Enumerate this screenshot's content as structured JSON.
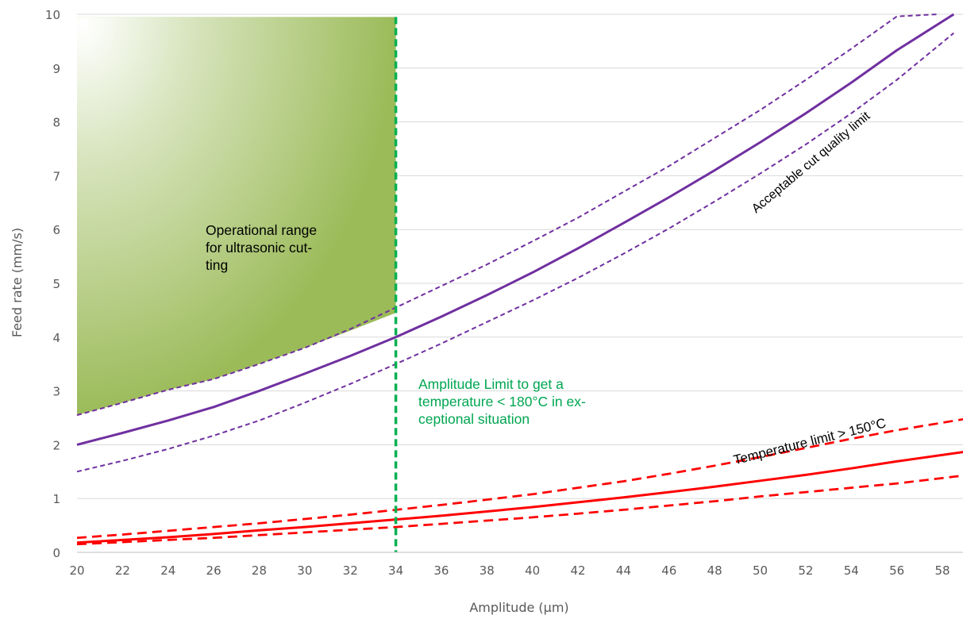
{
  "chart_data": {
    "type": "line",
    "title": "",
    "xlabel": "Amplitude (µm)",
    "ylabel": "Feed rate (mm/s)",
    "xlim": [
      20,
      59
    ],
    "ylim": [
      0,
      10
    ],
    "x_ticks": [
      20,
      22,
      24,
      26,
      28,
      30,
      32,
      34,
      36,
      38,
      40,
      42,
      44,
      46,
      48,
      50,
      52,
      54,
      56,
      58
    ],
    "y_ticks": [
      0,
      1,
      2,
      3,
      4,
      5,
      6,
      7,
      8,
      9,
      10
    ],
    "grid": {
      "horizontal": true,
      "vertical": false
    },
    "series": [
      {
        "name": "Acceptable cut quality limit",
        "style": "solid",
        "color": "#7030a0",
        "x": [
          20,
          22,
          24,
          26,
          28,
          30,
          32,
          34,
          36,
          38,
          40,
          42,
          44,
          46,
          48,
          50,
          52,
          54,
          56,
          58.5
        ],
        "y": [
          2.0,
          2.22,
          2.45,
          2.7,
          3.0,
          3.32,
          3.65,
          4.0,
          4.38,
          4.78,
          5.2,
          5.65,
          6.12,
          6.6,
          7.1,
          7.62,
          8.16,
          8.73,
          9.33,
          10.0
        ]
      },
      {
        "style": "dashed",
        "color": "#7030a0",
        "x": [
          20,
          22,
          24,
          26,
          28,
          30,
          32,
          34,
          36,
          38,
          40,
          42,
          44,
          46,
          48,
          50,
          52,
          54,
          56,
          57.8
        ],
        "y": [
          2.55,
          2.78,
          3.02,
          3.22,
          3.5,
          3.8,
          4.15,
          4.55,
          4.95,
          5.35,
          5.78,
          6.22,
          6.7,
          7.18,
          7.7,
          8.22,
          8.78,
          9.36,
          9.96,
          10.0
        ]
      },
      {
        "style": "dashed",
        "color": "#7030a0",
        "x": [
          20,
          22,
          24,
          26,
          28,
          30,
          32,
          34,
          36,
          38,
          40,
          42,
          44,
          46,
          48,
          50,
          52,
          54,
          56,
          58.5
        ],
        "y": [
          1.5,
          1.7,
          1.92,
          2.17,
          2.45,
          2.78,
          3.13,
          3.5,
          3.88,
          4.28,
          4.68,
          5.1,
          5.55,
          6.02,
          6.52,
          7.04,
          7.58,
          8.16,
          8.78,
          9.65
        ]
      },
      {
        "name": "Temperature limit > 150°C",
        "style": "solid",
        "color": "#ff0000",
        "x": [
          20,
          22,
          24,
          26,
          28,
          30,
          32,
          34,
          36,
          38,
          40,
          42,
          44,
          46,
          48,
          50,
          52,
          54,
          56,
          59
        ],
        "y": [
          0.18,
          0.23,
          0.28,
          0.34,
          0.41,
          0.47,
          0.54,
          0.61,
          0.68,
          0.76,
          0.84,
          0.93,
          1.02,
          1.12,
          1.22,
          1.33,
          1.44,
          1.56,
          1.69,
          1.87
        ]
      },
      {
        "style": "dashed",
        "color": "#ff0000",
        "x": [
          20,
          22,
          24,
          26,
          28,
          30,
          32,
          34,
          36,
          38,
          40,
          42,
          44,
          46,
          48,
          50,
          52,
          54,
          56,
          59
        ],
        "y": [
          0.27,
          0.33,
          0.4,
          0.47,
          0.54,
          0.62,
          0.7,
          0.79,
          0.88,
          0.98,
          1.08,
          1.2,
          1.32,
          1.46,
          1.61,
          1.77,
          1.94,
          2.11,
          2.27,
          2.48
        ]
      },
      {
        "style": "dashed",
        "color": "#ff0000",
        "x": [
          20,
          22,
          24,
          26,
          28,
          30,
          32,
          34,
          36,
          38,
          40,
          42,
          44,
          46,
          48,
          50,
          52,
          54,
          56,
          59
        ],
        "y": [
          0.15,
          0.19,
          0.23,
          0.27,
          0.32,
          0.37,
          0.42,
          0.47,
          0.53,
          0.59,
          0.65,
          0.72,
          0.79,
          0.87,
          0.95,
          1.04,
          1.12,
          1.2,
          1.28,
          1.43
        ]
      }
    ],
    "vertical_line": {
      "x": 34,
      "y_from": 0,
      "y_to": 9.95,
      "style": "dashed",
      "color": "#00b050"
    },
    "operational_region": {
      "fill": "#9bbb59",
      "x": [
        20,
        22,
        24,
        26,
        28,
        30,
        32,
        34,
        34,
        20
      ],
      "y": [
        2.55,
        2.78,
        3.02,
        3.22,
        3.5,
        3.8,
        4.12,
        4.45,
        9.95,
        9.95
      ]
    },
    "annotations": {
      "operational": [
        "Operational range",
        "for ultrasonic cut-",
        "ting"
      ],
      "amplitude_limit": [
        "Amplitude Limit to get a",
        "temperature < 180°C in ex-",
        "ceptional situation"
      ],
      "quality_limit": "Acceptable cut quality limit",
      "temperature_limit": "Temperature  limit > 150°C"
    }
  }
}
